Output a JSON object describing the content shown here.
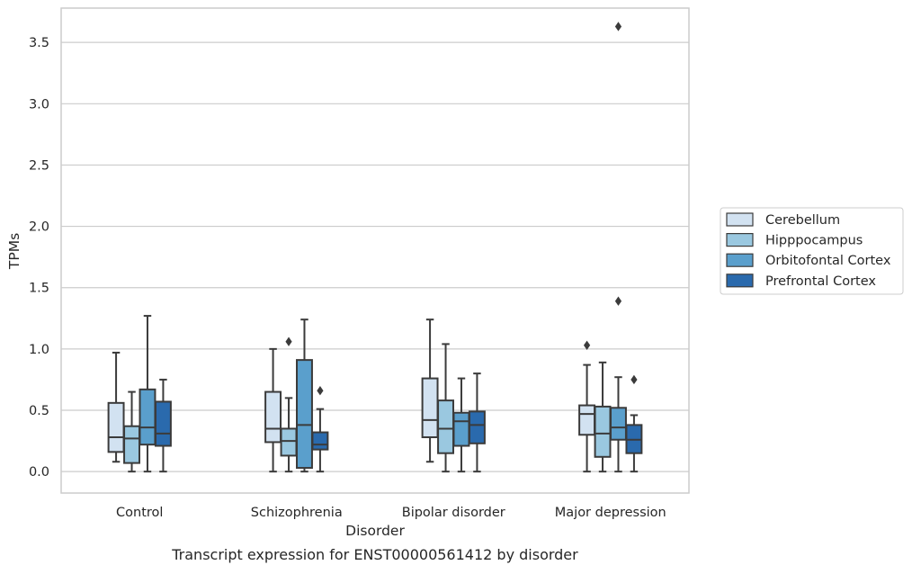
{
  "chart_data": {
    "type": "box",
    "title": "",
    "caption": "Transcript expression for ENST00000561412 by disorder",
    "xlabel": "Disorder",
    "ylabel": "TPMs",
    "ylim": [
      -0.175,
      3.78
    ],
    "yticks": [
      "0.0",
      "0.5",
      "1.0",
      "1.5",
      "2.0",
      "2.5",
      "3.0",
      "3.5"
    ],
    "ytick_values": [
      0,
      0.5,
      1,
      1.5,
      2,
      2.5,
      3,
      3.5
    ],
    "categories": [
      "Control",
      "Schizophrenia",
      "Bipolar disorder",
      "Major depression"
    ],
    "grid": "y",
    "legend_position": "right",
    "series": [
      {
        "name": "Cerebellum",
        "color": "#d2e2f1",
        "boxes": [
          {
            "whislo": 0.08,
            "q1": 0.16,
            "med": 0.28,
            "q3": 0.56,
            "whishi": 0.97,
            "fliers": []
          },
          {
            "whislo": 0.0,
            "q1": 0.24,
            "med": 0.35,
            "q3": 0.65,
            "whishi": 1.0,
            "fliers": []
          },
          {
            "whislo": 0.08,
            "q1": 0.28,
            "med": 0.42,
            "q3": 0.76,
            "whishi": 1.24,
            "fliers": []
          },
          {
            "whislo": 0.0,
            "q1": 0.3,
            "med": 0.47,
            "q3": 0.54,
            "whishi": 0.87,
            "fliers": [
              1.03
            ]
          }
        ]
      },
      {
        "name": "Hipppocampus",
        "color": "#9ac8e0",
        "boxes": [
          {
            "whislo": 0.0,
            "q1": 0.07,
            "med": 0.27,
            "q3": 0.37,
            "whishi": 0.65,
            "fliers": []
          },
          {
            "whislo": 0.0,
            "q1": 0.13,
            "med": 0.25,
            "q3": 0.35,
            "whishi": 0.6,
            "fliers": [
              1.06
            ]
          },
          {
            "whislo": 0.0,
            "q1": 0.15,
            "med": 0.35,
            "q3": 0.58,
            "whishi": 1.04,
            "fliers": []
          },
          {
            "whislo": 0.0,
            "q1": 0.12,
            "med": 0.31,
            "q3": 0.53,
            "whishi": 0.89,
            "fliers": []
          }
        ]
      },
      {
        "name": "Orbitofontal Cortex",
        "color": "#5a9fcc",
        "boxes": [
          {
            "whislo": 0.0,
            "q1": 0.22,
            "med": 0.36,
            "q3": 0.67,
            "whishi": 1.27,
            "fliers": []
          },
          {
            "whislo": 0.0,
            "q1": 0.03,
            "med": 0.38,
            "q3": 0.91,
            "whishi": 1.24,
            "fliers": []
          },
          {
            "whislo": 0.0,
            "q1": 0.21,
            "med": 0.41,
            "q3": 0.48,
            "whishi": 0.76,
            "fliers": []
          },
          {
            "whislo": 0.0,
            "q1": 0.26,
            "med": 0.36,
            "q3": 0.52,
            "whishi": 0.77,
            "fliers": [
              1.39,
              3.63
            ]
          }
        ]
      },
      {
        "name": "Prefrontal Cortex",
        "color": "#2a6aad",
        "boxes": [
          {
            "whislo": 0.0,
            "q1": 0.21,
            "med": 0.31,
            "q3": 0.57,
            "whishi": 0.75,
            "fliers": []
          },
          {
            "whislo": 0.0,
            "q1": 0.18,
            "med": 0.22,
            "q3": 0.32,
            "whishi": 0.51,
            "fliers": [
              0.66
            ]
          },
          {
            "whislo": 0.0,
            "q1": 0.23,
            "med": 0.38,
            "q3": 0.49,
            "whishi": 0.8,
            "fliers": []
          },
          {
            "whislo": 0.0,
            "q1": 0.15,
            "med": 0.26,
            "q3": 0.38,
            "whishi": 0.46,
            "fliers": [
              0.75
            ]
          }
        ]
      }
    ]
  }
}
